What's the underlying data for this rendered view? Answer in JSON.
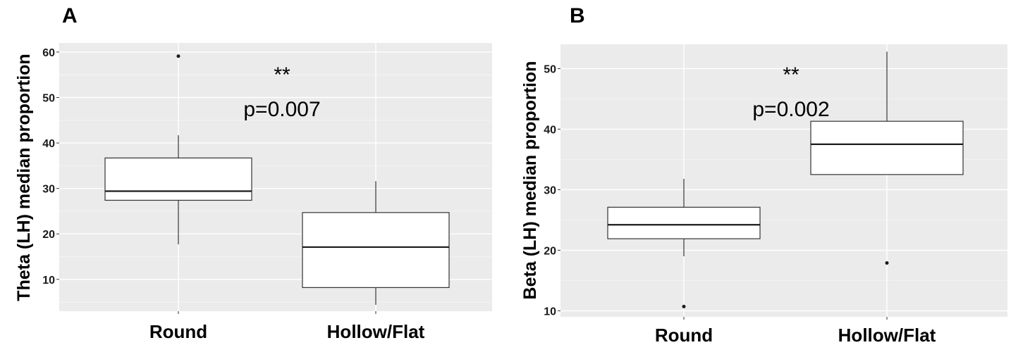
{
  "chart_data": [
    {
      "type": "boxplot",
      "panel_label": "A",
      "ylabel": "Theta (LH) median proportion",
      "xlabel": "",
      "categories": [
        "Round",
        "Hollow/Flat"
      ],
      "yticks": [
        10,
        20,
        30,
        40,
        50,
        60
      ],
      "ylim": [
        3,
        62
      ],
      "grid": true,
      "boxes": [
        {
          "category": "Round",
          "whisker_low": 17.7,
          "q1": 27.4,
          "median": 29.4,
          "q3": 36.7,
          "whisker_high": 41.7,
          "outliers": [
            59.1
          ]
        },
        {
          "category": "Hollow/Flat",
          "whisker_low": 4.4,
          "q1": 8.2,
          "median": 17.1,
          "q3": 24.7,
          "whisker_high": 31.6,
          "outliers": []
        }
      ],
      "annotation": {
        "stars": "**",
        "pvalue": "p=0.007"
      }
    },
    {
      "type": "boxplot",
      "panel_label": "B",
      "ylabel": "Beta (LH) median proportion",
      "xlabel": "",
      "categories": [
        "Round",
        "Hollow/Flat"
      ],
      "yticks": [
        10,
        20,
        30,
        40,
        50
      ],
      "ylim": [
        9,
        54
      ],
      "grid": true,
      "boxes": [
        {
          "category": "Round",
          "whisker_low": 19.0,
          "q1": 21.9,
          "median": 24.2,
          "q3": 27.1,
          "whisker_high": 31.8,
          "outliers": [
            10.7
          ]
        },
        {
          "category": "Hollow/Flat",
          "whisker_low": 32.5,
          "q1": 32.5,
          "median": 37.5,
          "q3": 41.3,
          "whisker_high": 52.8,
          "outliers": [
            17.9
          ]
        }
      ],
      "annotation": {
        "stars": "**",
        "pvalue": "p=0.002"
      }
    }
  ]
}
